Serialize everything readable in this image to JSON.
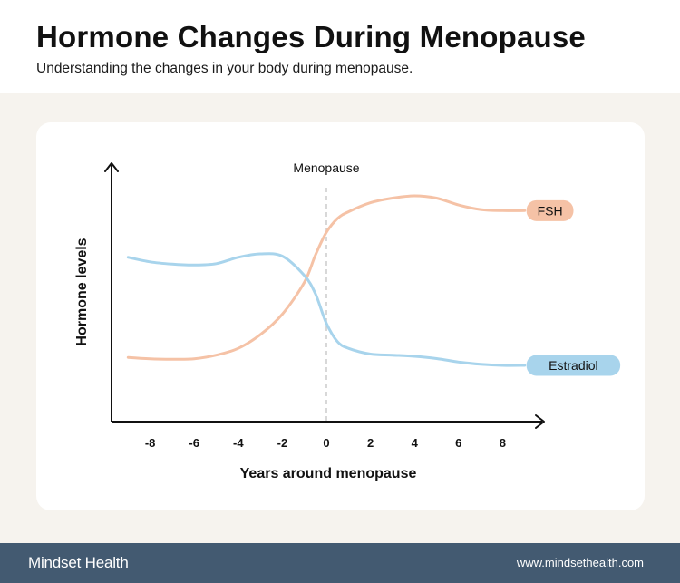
{
  "header": {
    "title": "Hormone Changes During Menopause",
    "subtitle": "Understanding the changes in your body during menopause."
  },
  "footer": {
    "brand": "Mindset Health",
    "url": "www.mindsethealth.com"
  },
  "colors": {
    "fsh": "#f5c2a6",
    "estradiol": "#a8d4ec",
    "footer_bg": "#435a71",
    "panel_bg": "#f6f3ee"
  },
  "chart_data": {
    "type": "line",
    "title": "",
    "xlabel": "Years around menopause",
    "ylabel": "Hormone levels",
    "xlim": [
      -9.8,
      9.8
    ],
    "ylim": [
      0,
      100
    ],
    "x_ticks": [
      -8,
      -6,
      -4,
      -2,
      0,
      2,
      4,
      6,
      8
    ],
    "grid": false,
    "annotations": [
      {
        "label": "Menopause",
        "x": 0
      }
    ],
    "series": [
      {
        "name": "FSH",
        "color": "#f5c2a6",
        "x": [
          -9,
          -8,
          -7,
          -6,
          -5,
          -4,
          -3,
          -2,
          -1,
          -0.5,
          0,
          0.5,
          1,
          2,
          3,
          4,
          5,
          6,
          7,
          8,
          9
        ],
        "y": [
          27,
          26.4,
          26.2,
          26.4,
          28,
          31,
          37,
          46,
          60,
          72,
          82,
          88,
          91,
          95,
          97,
          98,
          97,
          94,
          92,
          91.5,
          91.5
        ]
      },
      {
        "name": "Estradiol",
        "color": "#a8d4ec",
        "x": [
          -9,
          -8,
          -7,
          -6,
          -5,
          -4,
          -3,
          -2,
          -1,
          -0.5,
          0,
          0.5,
          1,
          2,
          3,
          4,
          5,
          6,
          7,
          8,
          9
        ],
        "y": [
          71,
          69,
          68,
          67.6,
          68.2,
          71,
          72.5,
          71.5,
          63,
          55,
          42,
          34,
          31,
          28.5,
          28,
          27.5,
          26.5,
          25,
          24,
          23.5,
          23.5
        ]
      }
    ]
  }
}
